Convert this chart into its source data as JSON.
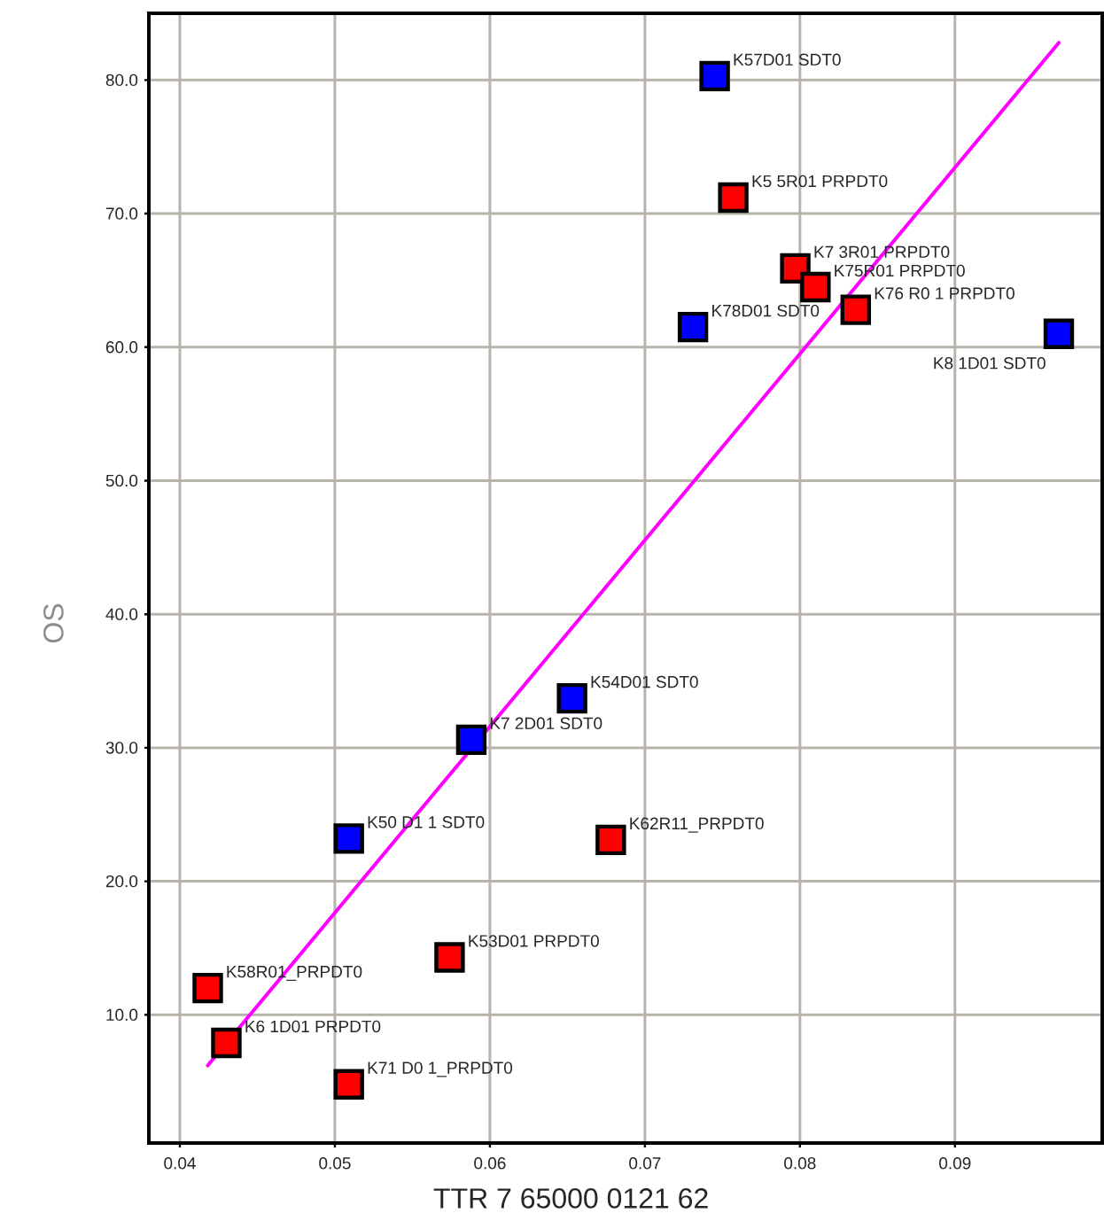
{
  "chart_data": {
    "type": "scatter",
    "xlabel": "TTR 7 65000 0121 62",
    "ylabel": "OS",
    "xlim": [
      0.038,
      0.0995
    ],
    "ylim": [
      0.4,
      85
    ],
    "xticks": [
      0.04,
      0.05,
      0.06,
      0.07,
      0.08,
      0.09
    ],
    "yticks": [
      {
        "value": 10,
        "label": "10.0"
      },
      {
        "value": 20,
        "label": "20.0"
      },
      {
        "value": 30,
        "label": "30.0"
      },
      {
        "value": 40,
        "label": "40.0"
      },
      {
        "value": 50,
        "label": "50.0"
      },
      {
        "value": 60,
        "label": "60.0"
      },
      {
        "value": 70,
        "label": "70.0"
      },
      {
        "value": 80,
        "label": "80.0"
      }
    ],
    "grid": true,
    "marker": "square",
    "series": [
      {
        "color": "#0000ff",
        "x": [
          0.0745,
          0.0731,
          0.0967,
          0.0653,
          0.0588,
          0.0509
        ],
        "values": [
          80.3,
          61.5,
          61.0,
          33.7,
          30.6,
          23.2
        ]
      },
      {
        "color": "#ff0000",
        "x": [
          0.0757,
          0.0797,
          0.081,
          0.0836,
          0.0678,
          0.0574,
          0.0418,
          0.043,
          0.0509
        ],
        "values": [
          71.2,
          65.9,
          64.5,
          62.8,
          23.1,
          14.3,
          12.0,
          7.9,
          4.8
        ]
      },
      {
        "type": "line",
        "marker": "none",
        "color": "#ff00ff",
        "x": [
          0.0418,
          0.0967
        ],
        "values": [
          6.2,
          82.8
        ]
      }
    ],
    "annotations": [
      {
        "text": "K57D01 SDT0",
        "x": 0.0745,
        "y": 80.3
      },
      {
        "text": "K78D01 SDT0",
        "x": 0.0731,
        "y": 61.5
      },
      {
        "text": "K8 1D01 SDT0",
        "x": 0.0967,
        "y": 61.0
      },
      {
        "text": "K54D01 SDT0",
        "x": 0.0653,
        "y": 33.7
      },
      {
        "text": "K7 2D01 SDT0",
        "x": 0.0588,
        "y": 30.6
      },
      {
        "text": "K50 D1 1 SDT0",
        "x": 0.0509,
        "y": 23.2
      },
      {
        "text": "K5 5R01 PRPDT0",
        "x": 0.0757,
        "y": 71.2
      },
      {
        "text": "K7 3R01 PRPDT0",
        "x": 0.0797,
        "y": 65.9
      },
      {
        "text": "K75R01 PRPDT0",
        "x": 0.081,
        "y": 64.5
      },
      {
        "text": "K76 R0 1 PRPDT0",
        "x": 0.0836,
        "y": 62.8
      },
      {
        "text": "K62R11_PRPDT0",
        "x": 0.0678,
        "y": 23.1
      },
      {
        "text": "K53D01 PRPDT0",
        "x": 0.0574,
        "y": 14.3
      },
      {
        "text": "K58R01_PRPDT0",
        "x": 0.0418,
        "y": 12.0
      },
      {
        "text": "K6 1D01 PRPDT0",
        "x": 0.043,
        "y": 7.9
      },
      {
        "text": "K71 D0 1_PRPDT0",
        "x": 0.0509,
        "y": 4.8
      }
    ]
  }
}
